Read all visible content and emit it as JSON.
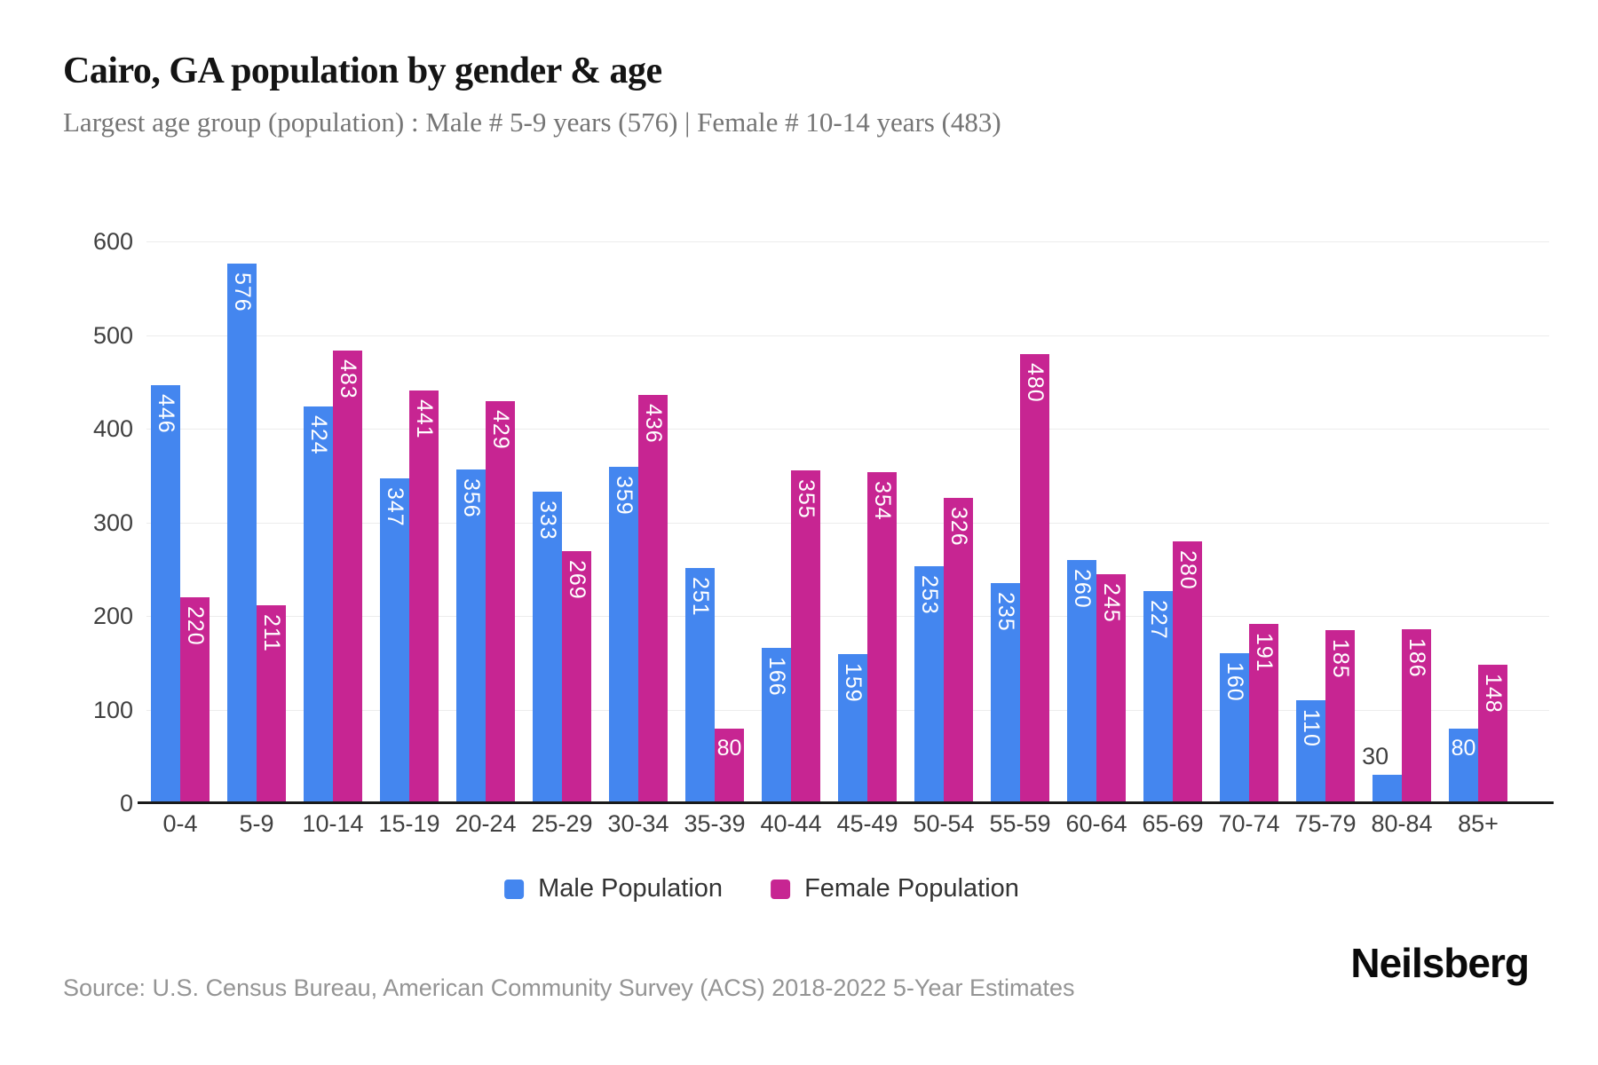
{
  "page": {
    "title": "Cairo, GA population by gender & age",
    "subtitle": "Largest age group (population) : Male # 5-9 years (576) | Female # 10-14 years (483)",
    "source": "Source: U.S. Census Bureau, American Community Survey (ACS) 2018-2022 5-Year Estimates",
    "logo": "Neilsberg"
  },
  "chart_data": {
    "type": "bar",
    "title": "Cairo, GA population by gender & age",
    "subtitle": "Largest age group (population) : Male # 5-9 years (576) | Female # 10-14 years (483)",
    "categories": [
      "0-4",
      "5-9",
      "10-14",
      "15-19",
      "20-24",
      "25-29",
      "30-34",
      "35-39",
      "40-44",
      "45-49",
      "50-54",
      "55-59",
      "60-64",
      "65-69",
      "70-74",
      "75-79",
      "80-84",
      "85+"
    ],
    "series": [
      {
        "name": "Male Population",
        "color": "#4486ef",
        "values": [
          446,
          576,
          424,
          347,
          356,
          333,
          359,
          251,
          166,
          159,
          253,
          235,
          260,
          227,
          160,
          110,
          30,
          80
        ]
      },
      {
        "name": "Female Population",
        "color": "#c72592",
        "values": [
          220,
          211,
          483,
          441,
          429,
          269,
          436,
          80,
          355,
          354,
          326,
          480,
          245,
          280,
          191,
          185,
          186,
          148
        ]
      }
    ],
    "xlabel": "",
    "ylabel": "",
    "ylim": [
      0,
      600
    ],
    "yticks": [
      0,
      100,
      200,
      300,
      400,
      500,
      600
    ],
    "grid": true,
    "legend_position": "bottom",
    "bar_label_color_inside": "#ffffff",
    "bar_label_color_outside": "#3f3f3f"
  }
}
